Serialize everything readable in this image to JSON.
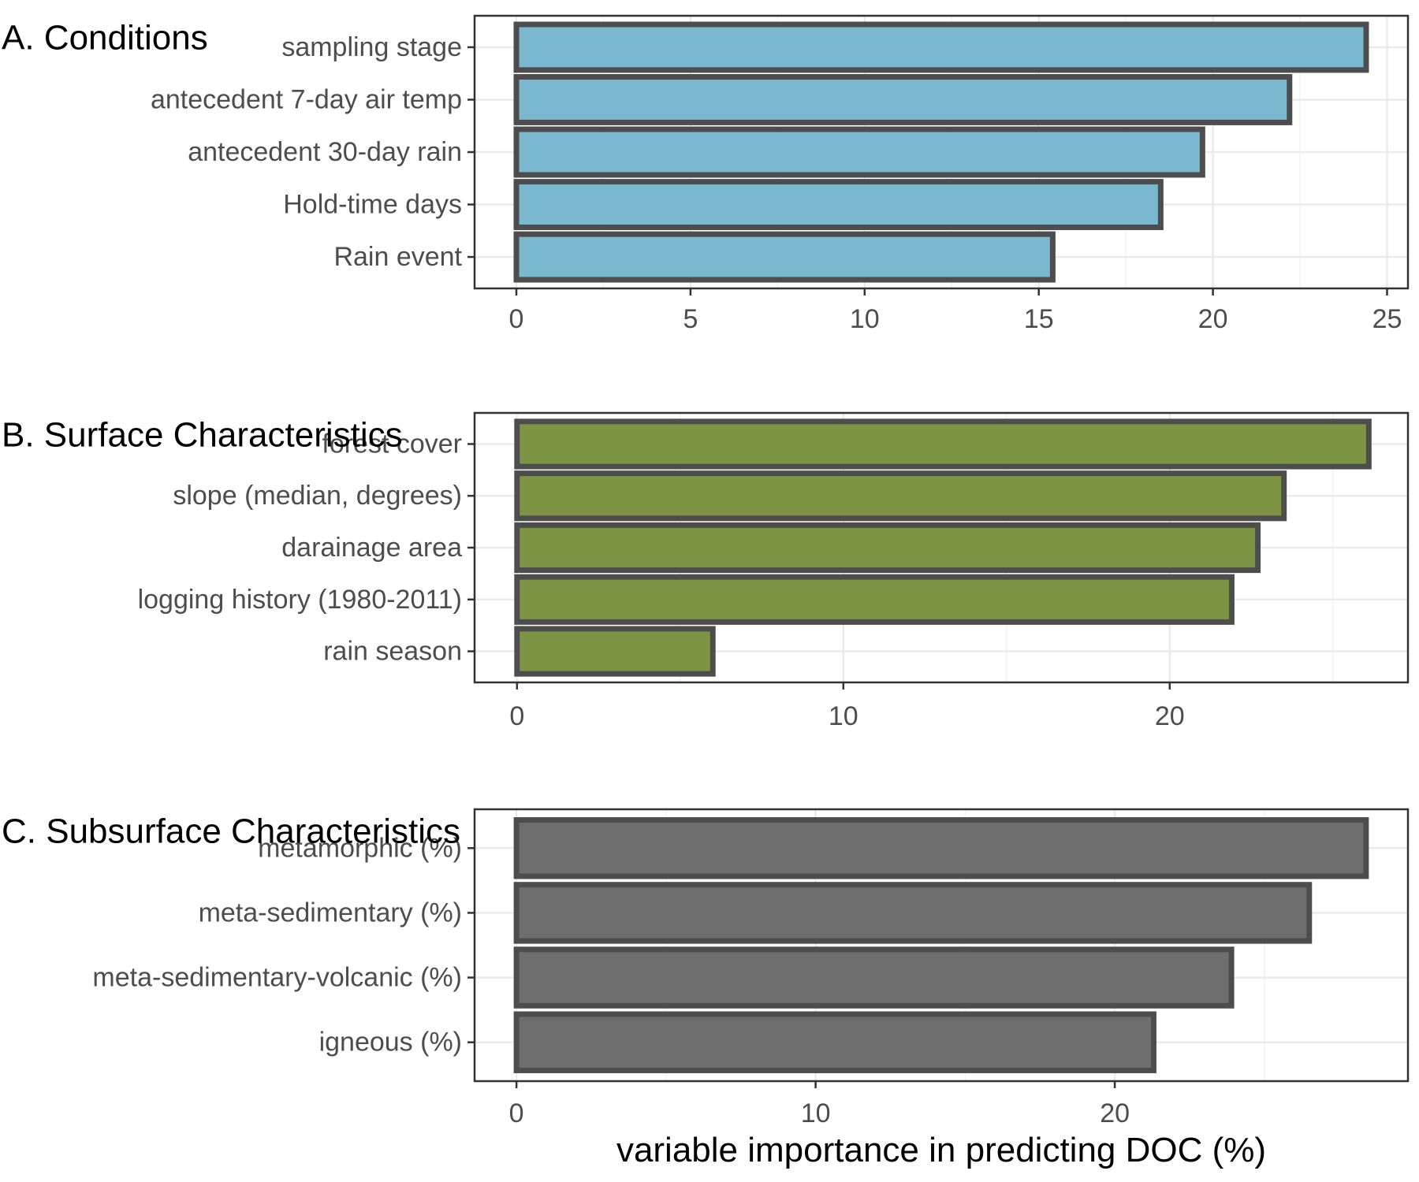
{
  "chart_data": [
    {
      "type": "bar",
      "orientation": "horizontal",
      "title": "A. Conditions",
      "categories": [
        "sampling stage",
        "antecedent 7-day air temp",
        "antecedent 30-day rain",
        "Hold-time days",
        "Rain event"
      ],
      "values": [
        24.4,
        22.2,
        19.7,
        18.5,
        15.4
      ],
      "xlim": [
        -1.2,
        25.6
      ],
      "xticks": [
        0,
        5,
        10,
        15,
        20,
        25
      ],
      "bar_color": "#7ab8d0",
      "grid": true
    },
    {
      "type": "bar",
      "orientation": "horizontal",
      "title": "B. Surface Characteristics",
      "categories": [
        "forest cover",
        "slope (median, degrees)",
        "darainage area",
        "logging history (1980-2011)",
        "rain season"
      ],
      "values": [
        26.1,
        23.5,
        22.7,
        21.9,
        6.0
      ],
      "xlim": [
        -1.3,
        27.3
      ],
      "xticks": [
        0,
        10,
        20
      ],
      "bar_color": "#7d9445",
      "grid": true
    },
    {
      "type": "bar",
      "orientation": "horizontal",
      "title": "C. Subsurface Characteristics",
      "categories": [
        "metamorphic (%)",
        "meta-sedimentary (%)",
        "meta-sedimentary-volcanic (%)",
        "igneous (%)"
      ],
      "values": [
        28.4,
        26.5,
        23.9,
        21.3
      ],
      "xlim": [
        -1.4,
        29.8
      ],
      "xticks": [
        0,
        10,
        20
      ],
      "xlabel": "variable importance in predicting DOC (%)",
      "bar_color": "#6e6e6e",
      "grid": true
    }
  ]
}
